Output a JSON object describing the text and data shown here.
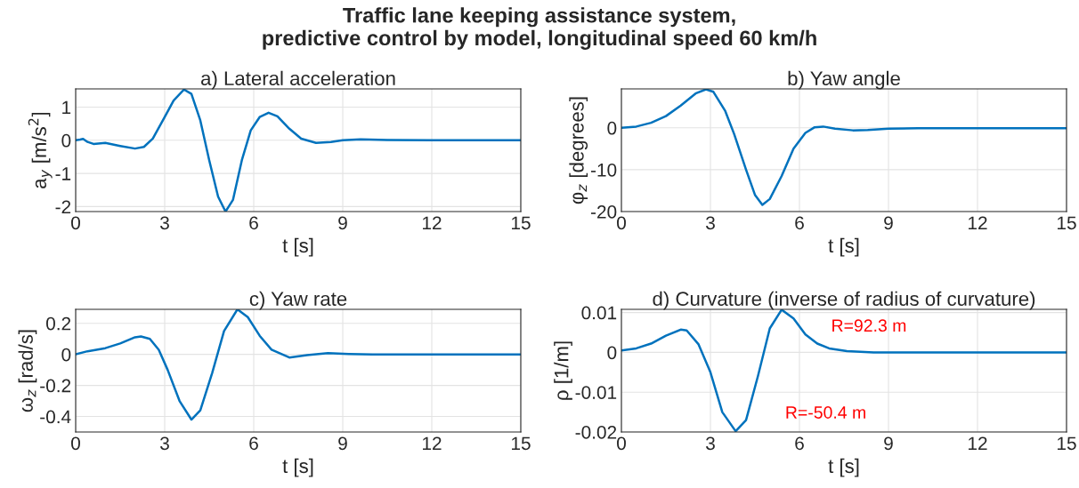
{
  "chart_data": [
    {
      "type": "line",
      "title": "a) Lateral acceleration",
      "xlabel": "t [s]",
      "ylabel": "a$_{y}$ [m/s$^{2}$]",
      "annotations": [
        "Traffic lane keeping assistance system,\npredictive control by model, longitudinal speed 60 km/h"
      ],
      "x": [
        0,
        0.15,
        0.25,
        0.4,
        0.6,
        1.0,
        1.5,
        2.0,
        2.3,
        2.6,
        3.0,
        3.3,
        3.65,
        3.9,
        4.2,
        4.5,
        4.8,
        5.05,
        5.3,
        5.6,
        5.9,
        6.2,
        6.5,
        6.8,
        7.2,
        7.6,
        8.1,
        8.6,
        9.0,
        9.6,
        10.5,
        12,
        15
      ],
      "series": [
        {
          "color": "#0072bd",
          "values": [
            0,
            0.02,
            0.04,
            -0.05,
            -0.11,
            -0.08,
            -0.17,
            -0.25,
            -0.2,
            0.05,
            0.7,
            1.2,
            1.53,
            1.4,
            0.6,
            -0.6,
            -1.7,
            -2.15,
            -1.8,
            -0.6,
            0.3,
            0.7,
            0.83,
            0.72,
            0.35,
            0.05,
            -0.08,
            -0.05,
            0,
            0.03,
            0.01,
            0,
            0
          ]
        }
      ],
      "xlim": [
        0,
        15
      ],
      "xticks": [
        0,
        3,
        6,
        9,
        12,
        15
      ],
      "ylim": [
        -2.15,
        1.55
      ],
      "yticks": [
        -2,
        -1,
        0,
        1
      ],
      "grid": true,
      "legend": false
    },
    {
      "type": "line",
      "title": "b) Yaw angle",
      "xlabel": "t [s]",
      "ylabel": "φ$_{z}$ [degrees]",
      "x": [
        0,
        0.5,
        1.0,
        1.5,
        2.0,
        2.5,
        2.85,
        3.1,
        3.5,
        3.8,
        4.2,
        4.5,
        4.75,
        5.0,
        5.4,
        5.8,
        6.2,
        6.5,
        6.8,
        7.2,
        7.8,
        8.3,
        9.0,
        10,
        12,
        15
      ],
      "series": [
        {
          "color": "#0072bd",
          "values": [
            0,
            0.3,
            1.2,
            2.8,
            5.3,
            8.2,
            9.2,
            8.6,
            4,
            -1.5,
            -10,
            -16,
            -18.4,
            -17,
            -11.5,
            -5,
            -1.2,
            0.1,
            0.3,
            -0.2,
            -0.6,
            -0.5,
            -0.2,
            -0.1,
            -0.1,
            -0.1
          ]
        }
      ],
      "xlim": [
        0,
        15
      ],
      "xticks": [
        0,
        3,
        6,
        9,
        12,
        15
      ],
      "ylim": [
        -20,
        9.3
      ],
      "yticks": [
        -20,
        -10,
        0
      ],
      "grid": true,
      "legend": false
    },
    {
      "type": "line",
      "title": "c) Yaw rate",
      "xlabel": "t [s]",
      "ylabel": "ω$_{z}$ [rad/s]",
      "x": [
        0,
        0.4,
        1.0,
        1.5,
        2.0,
        2.2,
        2.5,
        2.8,
        3.1,
        3.5,
        3.9,
        4.2,
        4.6,
        5.0,
        5.45,
        5.8,
        6.2,
        6.6,
        7.2,
        7.8,
        8.5,
        9.2,
        10,
        15
      ],
      "series": [
        {
          "color": "#0072bd",
          "values": [
            0,
            0.02,
            0.04,
            0.07,
            0.11,
            0.115,
            0.1,
            0.03,
            -0.1,
            -0.3,
            -0.42,
            -0.36,
            -0.12,
            0.15,
            0.29,
            0.24,
            0.12,
            0.03,
            -0.02,
            -0.005,
            0.008,
            0.003,
            0,
            0
          ]
        }
      ],
      "xlim": [
        0,
        15
      ],
      "xticks": [
        0,
        3,
        6,
        9,
        12,
        15
      ],
      "ylim": [
        -0.5,
        0.29
      ],
      "yticks": [
        -0.4,
        -0.2,
        0,
        0.2
      ],
      "grid": true,
      "legend": false
    },
    {
      "type": "line",
      "title": "d) Curvature (inverse of radius of curvature)",
      "xlabel": "t [s]",
      "ylabel": "ρ [1/m]",
      "annotations": [
        "R=92.3 m",
        "R=-50.4 m"
      ],
      "x": [
        0,
        0.5,
        1.0,
        1.5,
        2.0,
        2.2,
        2.6,
        3.0,
        3.4,
        3.85,
        4.2,
        4.6,
        5.0,
        5.4,
        5.8,
        6.2,
        6.6,
        7.0,
        7.6,
        8.5,
        15
      ],
      "series": [
        {
          "color": "#0072bd",
          "values": [
            0.0005,
            0.001,
            0.0022,
            0.0042,
            0.0057,
            0.0055,
            0.002,
            -0.005,
            -0.015,
            -0.0198,
            -0.017,
            -0.006,
            0.006,
            0.0107,
            0.0085,
            0.0045,
            0.0022,
            0.001,
            0.0003,
            0,
            0
          ]
        }
      ],
      "xlim": [
        0,
        15
      ],
      "xticks": [
        0,
        3,
        6,
        9,
        12,
        15
      ],
      "ylim": [
        -0.02,
        0.0108
      ],
      "yticks": [
        -0.02,
        -0.01,
        0,
        0.01
      ],
      "grid": true,
      "legend": false
    }
  ]
}
